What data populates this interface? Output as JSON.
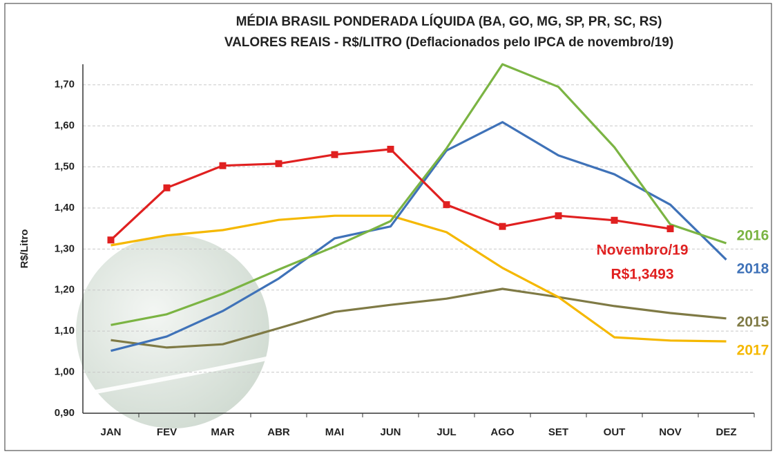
{
  "chart_data": {
    "type": "line",
    "title": "MÉDIA BRASIL PONDERADA LÍQUIDA (BA, GO, MG, SP, PR, SC, RS)",
    "subtitle": "VALORES REAIS - R$/LITRO (Deflacionados pelo IPCA de novembro/19)",
    "y_label": "R$/Litro",
    "categories": [
      "JAN",
      "FEV",
      "MAR",
      "ABR",
      "MAI",
      "JUN",
      "JUL",
      "AGO",
      "SET",
      "OUT",
      "NOV",
      "DEZ"
    ],
    "series": [
      {
        "name": "2015",
        "color": "#7f7a45",
        "values": [
          1.078,
          1.06,
          1.068,
          1.107,
          1.147,
          1.164,
          1.179,
          1.203,
          1.183,
          1.161,
          1.144,
          1.131
        ]
      },
      {
        "name": "2017",
        "color": "#f5b800",
        "values": [
          1.309,
          1.333,
          1.346,
          1.371,
          1.381,
          1.381,
          1.341,
          1.254,
          1.183,
          1.085,
          1.077,
          1.075
        ]
      },
      {
        "name": "2018",
        "color": "#3f72b8",
        "values": [
          1.052,
          1.087,
          1.149,
          1.228,
          1.326,
          1.355,
          1.54,
          1.609,
          1.528,
          1.482,
          1.408,
          1.274
        ]
      },
      {
        "name": "2016",
        "color": "#7bb443",
        "values": [
          1.115,
          1.141,
          1.191,
          1.25,
          1.306,
          1.368,
          1.545,
          1.75,
          1.695,
          1.548,
          1.36,
          1.314
        ]
      },
      {
        "color": "#e02020",
        "markers": true,
        "values": [
          1.322,
          1.449,
          1.503,
          1.508,
          1.53,
          1.543,
          1.408,
          1.355,
          1.381,
          1.37,
          1.3493,
          null
        ]
      }
    ],
    "annotations": [
      "Novembro/19",
      "R$1,3493"
    ],
    "ylim": [
      0.9,
      1.75
    ],
    "yticks": [
      {
        "value": 0.9,
        "label": "0,90"
      },
      {
        "value": 1.0,
        "label": "1,00"
      },
      {
        "value": 1.1,
        "label": "1,10"
      },
      {
        "value": 1.2,
        "label": "1,20"
      },
      {
        "value": 1.3,
        "label": "1,30"
      },
      {
        "value": 1.4,
        "label": "1,40"
      },
      {
        "value": 1.5,
        "label": "1,50"
      },
      {
        "value": 1.6,
        "label": "1,60"
      },
      {
        "value": 1.7,
        "label": "1,70"
      }
    ],
    "grid": true
  }
}
